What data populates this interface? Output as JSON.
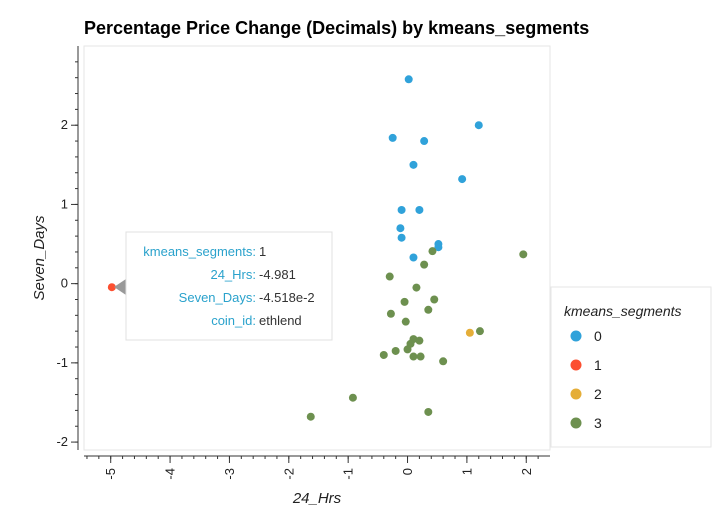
{
  "chart_data": {
    "type": "scatter",
    "title": "Percentage Price Change (Decimals) by kmeans_segments",
    "xlabel": "24_Hrs",
    "ylabel": "Seven_Days",
    "xlim": [
      -5.45,
      2.4
    ],
    "ylim": [
      -2.1,
      3.0
    ],
    "x_ticks": [
      -5,
      -4,
      -3,
      -2,
      -1,
      0,
      1,
      2
    ],
    "y_ticks": [
      -2,
      -1,
      0,
      1,
      2
    ],
    "x_tick_labels": [
      "-5",
      "-4",
      "-3",
      "-2",
      "-1",
      "0",
      "1",
      "2"
    ],
    "y_tick_labels": [
      "-2",
      "-1",
      "0",
      "1",
      "2"
    ],
    "grid": false,
    "legend": {
      "title": "kmeans_segments",
      "placement": "right",
      "entries": [
        "0",
        "1",
        "2",
        "3"
      ]
    },
    "series": [
      {
        "name": "0",
        "color": "#30a2da",
        "points": [
          [
            0.02,
            2.58
          ],
          [
            1.2,
            2.0
          ],
          [
            -0.25,
            1.84
          ],
          [
            0.28,
            1.8
          ],
          [
            0.1,
            1.5
          ],
          [
            0.92,
            1.32
          ],
          [
            -0.1,
            0.93
          ],
          [
            0.2,
            0.93
          ],
          [
            -0.12,
            0.7
          ],
          [
            -0.1,
            0.58
          ],
          [
            0.52,
            0.5
          ],
          [
            0.52,
            0.46
          ],
          [
            0.1,
            0.33
          ]
        ]
      },
      {
        "name": "1",
        "color": "#fc4f30",
        "points": [
          [
            -4.981,
            -0.04518
          ]
        ]
      },
      {
        "name": "2",
        "color": "#e5ae38",
        "points": [
          [
            1.05,
            -0.62
          ]
        ]
      },
      {
        "name": "3",
        "color": "#6d904f",
        "points": [
          [
            1.95,
            0.37
          ],
          [
            0.42,
            0.41
          ],
          [
            0.28,
            0.24
          ],
          [
            -0.3,
            0.09
          ],
          [
            0.15,
            -0.05
          ],
          [
            -0.05,
            -0.23
          ],
          [
            0.45,
            -0.2
          ],
          [
            -0.28,
            -0.38
          ],
          [
            0.35,
            -0.33
          ],
          [
            -0.03,
            -0.48
          ],
          [
            0.1,
            -0.7
          ],
          [
            0.2,
            -0.72
          ],
          [
            0.05,
            -0.76
          ],
          [
            0.0,
            -0.83
          ],
          [
            -0.2,
            -0.85
          ],
          [
            -0.4,
            -0.9
          ],
          [
            0.1,
            -0.92
          ],
          [
            0.22,
            -0.92
          ],
          [
            0.6,
            -0.98
          ],
          [
            1.22,
            -0.6
          ],
          [
            -0.92,
            -1.44
          ],
          [
            -1.63,
            -1.68
          ],
          [
            0.35,
            -1.62
          ]
        ]
      }
    ]
  },
  "tooltip": {
    "rows": [
      {
        "key": "kmeans_segments:",
        "value": "1"
      },
      {
        "key": "24_Hrs:",
        "value": "-4.981"
      },
      {
        "key": "Seven_Days:",
        "value": "-4.518e-2"
      },
      {
        "key": "coin_id:",
        "value": "ethlend"
      }
    ]
  }
}
